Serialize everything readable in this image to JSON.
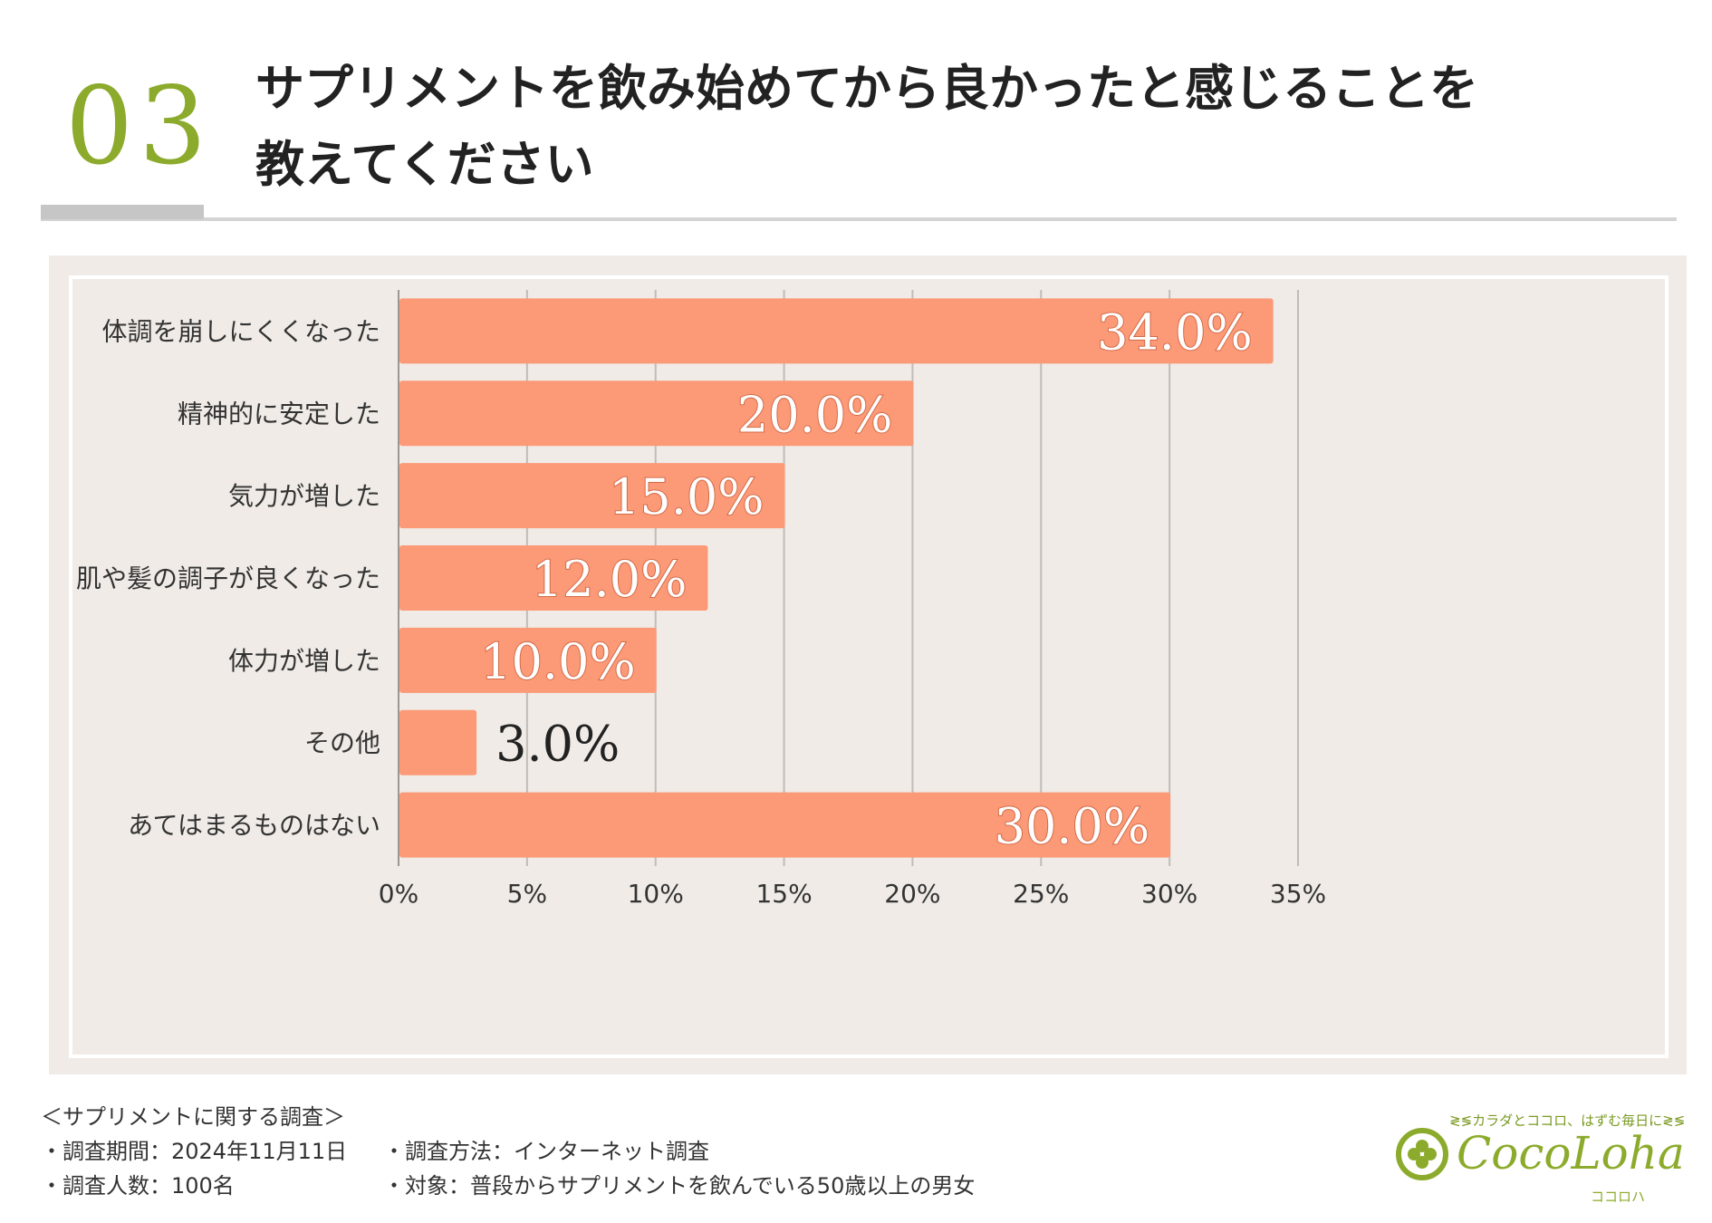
{
  "header": {
    "number": "03",
    "title": "サプリメントを飲み始めてから良かったと感じることを\n教えてください"
  },
  "colors": {
    "accent": "#8cab2c",
    "bar": "#fc9a77",
    "panel": "#f0ebe6",
    "grid": "#bfbcb9"
  },
  "chart_data": {
    "type": "bar",
    "orientation": "horizontal",
    "title": "サプリメントを飲み始めてから良かったと感じることを教えてください",
    "categories": [
      "体調を崩しにくくなった",
      "精神的に安定した",
      "気力が増した",
      "肌や髪の調子が良くなった",
      "体力が増した",
      "その他",
      "あてはまるものはない"
    ],
    "values": [
      34.0,
      20.0,
      15.0,
      12.0,
      10.0,
      3.0,
      30.0
    ],
    "value_labels": [
      "34.0%",
      "20.0%",
      "15.0%",
      "12.0%",
      "10.0%",
      "3.0%",
      "30.0%"
    ],
    "x_ticks": [
      "0%",
      "5%",
      "10%",
      "15%",
      "20%",
      "25%",
      "30%",
      "35%"
    ],
    "xlim": [
      0,
      35
    ],
    "xlabel": "",
    "ylabel": "",
    "grid": true
  },
  "footer": {
    "survey_title": "＜サプリメントに関する調査＞",
    "period": "・調査期間：2024年11月11日",
    "method": "・調査方法：インターネット調査",
    "count": "・調査人数：100名",
    "target": "・対象：普段からサプリメントを飲んでいる50歳以上の男女"
  },
  "logo": {
    "tagline": "≷≶カラダとココロ、はずむ毎日に≷≶",
    "name": "CocoLoha",
    "kana": "ココロハ"
  }
}
